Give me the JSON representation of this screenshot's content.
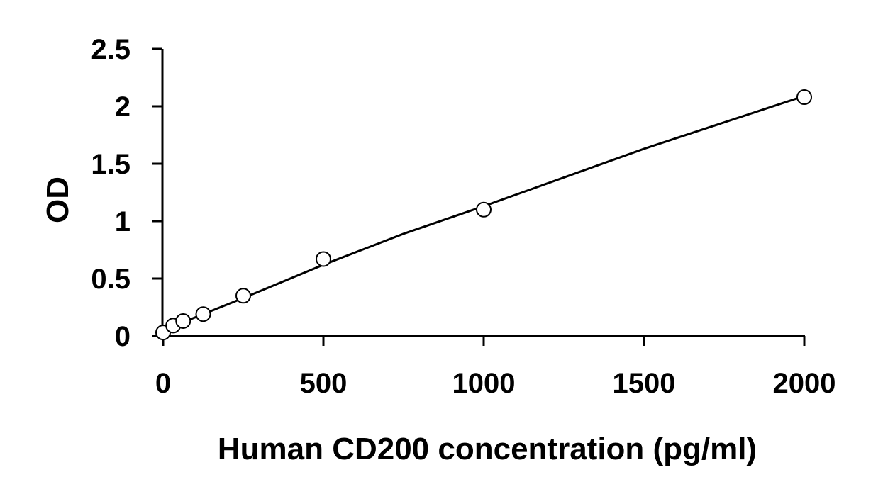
{
  "chart_data": {
    "type": "scatter",
    "title": "",
    "xlabel": "Human CD200 concentration (pg/ml)",
    "ylabel": "OD",
    "xlim": [
      0,
      2000
    ],
    "ylim": [
      0,
      2.5
    ],
    "x_ticks": [
      0,
      500,
      1000,
      1500,
      2000
    ],
    "x_tick_labels": [
      "0",
      "500",
      "1000",
      "1500",
      "2000"
    ],
    "y_ticks": [
      0,
      0.5,
      1,
      1.5,
      2,
      2.5
    ],
    "y_tick_labels": [
      "0",
      "0.5",
      "1",
      "1.5",
      "2",
      "2.5"
    ],
    "grid": false,
    "legend": "none",
    "series": [
      {
        "marker": "open-circle",
        "x": [
          0,
          31.25,
          62.5,
          125,
          250,
          500,
          1000,
          2000
        ],
        "y": [
          0.03,
          0.09,
          0.13,
          0.19,
          0.35,
          0.67,
          1.1,
          2.08
        ]
      }
    ],
    "fit_line": {
      "x": [
        0,
        125,
        250,
        500,
        750,
        1000,
        1250,
        1500,
        1750,
        2000
      ],
      "y": [
        0.05,
        0.19,
        0.33,
        0.62,
        0.89,
        1.13,
        1.38,
        1.63,
        1.86,
        2.09
      ]
    },
    "colors": {
      "axis": "#000000",
      "marker_stroke": "#000000",
      "marker_fill": "#ffffff",
      "line": "#000000"
    }
  }
}
